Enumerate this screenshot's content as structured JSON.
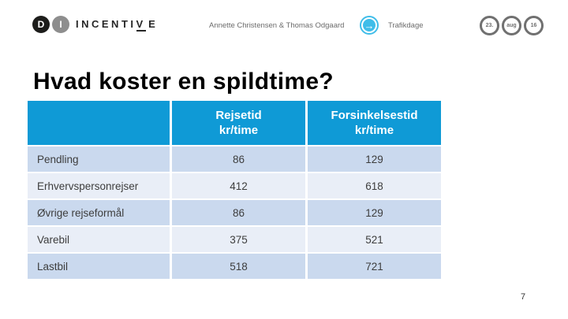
{
  "header": {
    "logo": {
      "circle_d": "D",
      "circle_i": "I",
      "text_part1": "INCENTI",
      "text_v": "V",
      "text_part2": "E"
    },
    "authors": "Annette Christensen & Thomas Odgaard",
    "arrow_icon_glyph": "→",
    "event": "Trafikdage",
    "date_badges": [
      "23.",
      "aug",
      "16"
    ]
  },
  "title": "Hvad koster en spildtime?",
  "table": {
    "columns": {
      "col1": {
        "line1": "Rejsetid",
        "line2": "kr/time"
      },
      "col2": {
        "line1": "Forsinkelsestid",
        "line2": "kr/time"
      }
    },
    "rows": [
      {
        "label": "Pendling",
        "rejsetid": "86",
        "forsinkelsestid": "129"
      },
      {
        "label": "Erhvervspersonrejser",
        "rejsetid": "412",
        "forsinkelsestid": "618"
      },
      {
        "label": "Øvrige rejseformål",
        "rejsetid": "86",
        "forsinkelsestid": "129"
      },
      {
        "label": "Varebil",
        "rejsetid": "375",
        "forsinkelsestid": "521"
      },
      {
        "label": "Lastbil",
        "rejsetid": "518",
        "forsinkelsestid": "721"
      }
    ]
  },
  "footer": {
    "page_number": "7"
  },
  "colors": {
    "table_header_blue": "#0f9ad6",
    "row_alt_dark": "#cad9ee",
    "row_alt_light": "#e9eef7",
    "arrow_badge_cyan": "#3fbde9",
    "logo_circle_black": "#1d1d1b",
    "logo_circle_gray": "#8e8e8e",
    "muted_text_gray": "#6b6b6b"
  }
}
